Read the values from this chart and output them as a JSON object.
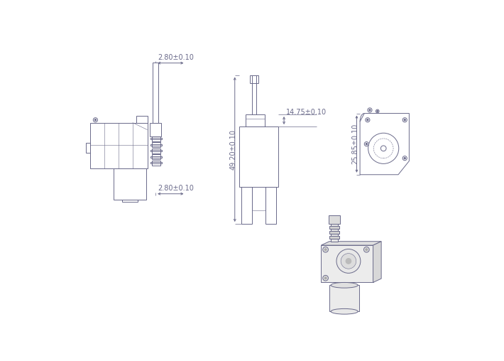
{
  "bg": "#ffffff",
  "lc": "#6a6a8a",
  "fs": 7.0,
  "dim_280_top": "2.80±0.10",
  "dim_280_bot": "2.80±0.10",
  "dim_4920": "49.20±0.10",
  "dim_1475": "14.75±0.10",
  "dim_2585": "25.85±0.10",
  "lw": 0.7,
  "lw_thin": 0.4
}
